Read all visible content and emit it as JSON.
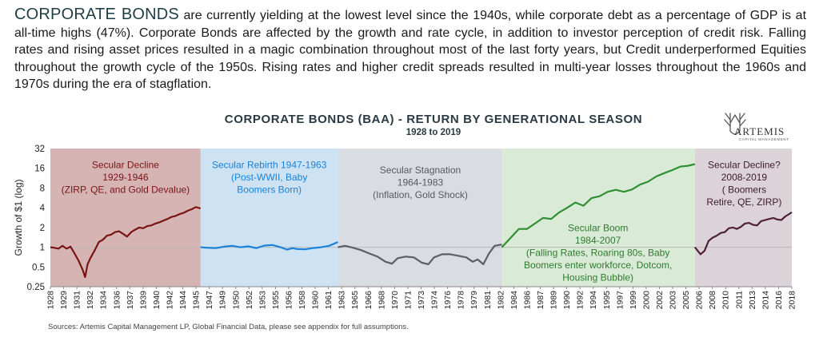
{
  "intro": {
    "lead": "CORPORATE BONDS",
    "text": " are currently yielding at the lowest level since the 1940s, while corporate debt as a percentage of GDP is at all-time highs (47%). Corporate Bonds are affected by the growth and rate cycle, in addition to investor perception of credit risk. Falling rates and rising asset prices resulted in a magic combination throughout most of the last forty years, but Credit underperformed Equities throughout the growth cycle of the 1950s.  Rising rates and higher credit spreads resulted in multi-year losses throughout the 1960s and 1970s during the era of stagflation."
  },
  "logo": {
    "name": "ARTEMIS",
    "sub": "CAPITAL MANAGEMENT",
    "icon": "stag-antlers-icon"
  },
  "source": "Sources: Artemis Capital Management LP, Global Financial Data, please see appendix for full assumptions.",
  "colors": {
    "decline": "#d6b4b4",
    "rebirth": "#cde2f3",
    "stagnation": "#d9dde1",
    "boom": "#d9ebd6",
    "decline2": "#dcd3d9",
    "line_decline": "#7a1414",
    "line_rebirth": "#1a82d8",
    "line_stagnation": "#5b5f66",
    "line_boom": "#2f8f32",
    "line_decline2": "#4e2236"
  },
  "chart_data": {
    "type": "line",
    "title": "CORPORATE BONDS (BAA) - RETURN BY GENERATIONAL SEASON",
    "subtitle": "1928 to 2019",
    "ylabel": "Growth of $1 (log)",
    "xlabel": "",
    "y_scale": "log2",
    "ylim": [
      0.25,
      32
    ],
    "yticks": [
      32,
      16,
      8,
      4,
      2,
      1,
      0.5,
      0.25
    ],
    "xlim": [
      1928,
      2019.8
    ],
    "reference_line": 1,
    "xticks": [
      "1928",
      "1929",
      "1931",
      "1932",
      "1934",
      "1936",
      "1937",
      "1939",
      "1940",
      "1942",
      "1944",
      "1945",
      "1947",
      "1949",
      "1950",
      "1952",
      "1953",
      "1955",
      "1956",
      "1958",
      "1960",
      "1961",
      "1963",
      "1965",
      "1966",
      "1968",
      "1970",
      "1971",
      "1973",
      "1974",
      "1976",
      "1978",
      "1979",
      "1981",
      "1982",
      "1984",
      "1986",
      "1987",
      "1989",
      "1990",
      "1992",
      "1994",
      "1995",
      "1997",
      "1999",
      "2000",
      "2002",
      "2003",
      "2005",
      "2006",
      "2008",
      "2010",
      "2011",
      "2013",
      "2014",
      "2016",
      "2018"
    ],
    "seasons": [
      {
        "key": "decline",
        "start": 1928,
        "end": 1946.6,
        "color_key": "decline",
        "line_key": "line_decline",
        "text_color": "#7a1414",
        "label": [
          "Secular Decline",
          "1929-1946",
          "(ZIRP, QE, and Gold Devalue)"
        ],
        "label_x": 1937.3,
        "label_y": 16
      },
      {
        "key": "rebirth",
        "start": 1946.6,
        "end": 1963.6,
        "color_key": "rebirth",
        "line_key": "line_rebirth",
        "text_color": "#1a82d8",
        "label": [
          "Secular Rebirth 1947-1963",
          "(Post-WWII,  Baby",
          "Boomers Born)"
        ],
        "label_x": 1955.1,
        "label_y": 16
      },
      {
        "key": "stagnation",
        "start": 1963.6,
        "end": 1983.9,
        "color_key": "stagnation",
        "line_key": "line_stagnation",
        "text_color": "#555a60",
        "label": [
          "Secular Stagnation",
          "1964-1983",
          "(Inflation, Gold Shock)"
        ],
        "label_x": 1973.8,
        "label_y": 13.5
      },
      {
        "key": "boom",
        "start": 1983.9,
        "end": 2007.8,
        "color_key": "boom",
        "line_key": "line_boom",
        "text_color": "#2f7a2f",
        "label": [
          "Secular Boom",
          "1984-2007",
          "(Falling Rates, Roaring 80s, Baby",
          "Boomers enter workforce, Dotcom,",
          "Housing Bubble)"
        ],
        "label_x": 1995.8,
        "label_y": 1.75
      },
      {
        "key": "decline2",
        "start": 2007.8,
        "end": 2019.8,
        "color_key": "decline2",
        "line_key": "line_decline2",
        "text_color": "#3b1a2a",
        "label": [
          "Secular Decline?",
          "2008-2019",
          "( Boomers",
          "Retire, QE, ZIRP)"
        ],
        "label_x": 2013.9,
        "label_y": 16
      }
    ],
    "series": [
      {
        "name": "",
        "season": "decline",
        "x": [
          1928.0,
          1928.5,
          1929.0,
          1929.5,
          1930.0,
          1930.5,
          1931.0,
          1931.5,
          1932.0,
          1932.3,
          1932.6,
          1933.0,
          1933.5,
          1934.0,
          1934.5,
          1935.0,
          1935.5,
          1936.0,
          1936.5,
          1937.0,
          1937.5,
          1938.0,
          1938.5,
          1939.0,
          1939.5,
          1940.0,
          1940.5,
          1941.0,
          1941.5,
          1942.0,
          1942.5,
          1943.0,
          1943.5,
          1944.0,
          1944.5,
          1945.0,
          1945.5,
          1946.0,
          1946.6
        ],
        "y": [
          1.0,
          0.98,
          0.95,
          1.05,
          0.95,
          1.02,
          0.8,
          0.62,
          0.45,
          0.35,
          0.55,
          0.7,
          0.9,
          1.2,
          1.3,
          1.5,
          1.55,
          1.7,
          1.75,
          1.6,
          1.45,
          1.7,
          1.85,
          2.0,
          1.95,
          2.1,
          2.15,
          2.3,
          2.4,
          2.55,
          2.7,
          2.9,
          3.0,
          3.2,
          3.35,
          3.6,
          3.8,
          4.1,
          3.9
        ]
      },
      {
        "name": "",
        "season": "rebirth",
        "x": [
          1946.6,
          1947.5,
          1948.5,
          1949.5,
          1950.5,
          1951.5,
          1952.5,
          1953.5,
          1954.5,
          1955.5,
          1956.5,
          1957.3,
          1958.0,
          1958.5,
          1959.5,
          1960.5,
          1961.5,
          1962.5,
          1963.6
        ],
        "y": [
          1.0,
          0.98,
          0.97,
          1.02,
          1.05,
          1.0,
          1.03,
          0.97,
          1.06,
          1.08,
          1.0,
          0.92,
          0.97,
          0.94,
          0.93,
          0.97,
          1.0,
          1.05,
          1.2
        ]
      },
      {
        "name": "",
        "season": "stagnation",
        "x": [
          1963.6,
          1964.5,
          1965.5,
          1966.5,
          1967.5,
          1968.5,
          1969.5,
          1970.3,
          1971.0,
          1972.0,
          1973.0,
          1974.0,
          1974.8,
          1975.5,
          1976.5,
          1977.5,
          1978.5,
          1979.5,
          1980.3,
          1980.9,
          1981.6,
          1982.3,
          1983.0,
          1983.9
        ],
        "y": [
          1.0,
          1.05,
          0.98,
          0.9,
          0.8,
          0.72,
          0.6,
          0.56,
          0.68,
          0.72,
          0.7,
          0.58,
          0.55,
          0.7,
          0.78,
          0.78,
          0.74,
          0.7,
          0.6,
          0.65,
          0.55,
          0.8,
          1.05,
          1.1
        ]
      },
      {
        "name": "",
        "season": "boom",
        "x": [
          1983.9,
          1985.0,
          1986.0,
          1987.0,
          1988.0,
          1989.0,
          1990.0,
          1991.0,
          1992.0,
          1993.0,
          1994.0,
          1995.0,
          1996.0,
          1997.0,
          1998.0,
          1999.0,
          2000.0,
          2001.0,
          2002.0,
          2003.0,
          2004.0,
          2005.0,
          2006.0,
          2007.0,
          2007.8
        ],
        "y": [
          1.0,
          1.4,
          1.9,
          1.9,
          2.3,
          2.8,
          2.7,
          3.4,
          4.0,
          4.8,
          4.3,
          5.6,
          6.0,
          7.0,
          7.5,
          7.0,
          7.6,
          9.0,
          10.0,
          12.0,
          13.5,
          15.0,
          17.0,
          17.5,
          18.5
        ]
      },
      {
        "name": "",
        "season": "decline2",
        "x": [
          2007.8,
          2008.5,
          2009.0,
          2009.5,
          2010.0,
          2010.5,
          2011.0,
          2011.5,
          2012.0,
          2012.5,
          2013.0,
          2013.5,
          2014.0,
          2014.5,
          2015.0,
          2015.5,
          2016.0,
          2016.5,
          2017.0,
          2017.5,
          2018.0,
          2018.5,
          2019.0,
          2019.8
        ],
        "y": [
          1.0,
          0.78,
          0.88,
          1.25,
          1.4,
          1.5,
          1.65,
          1.7,
          1.95,
          2.0,
          1.9,
          2.05,
          2.3,
          2.35,
          2.2,
          2.15,
          2.5,
          2.6,
          2.7,
          2.8,
          2.65,
          2.6,
          2.95,
          3.4
        ]
      }
    ]
  }
}
